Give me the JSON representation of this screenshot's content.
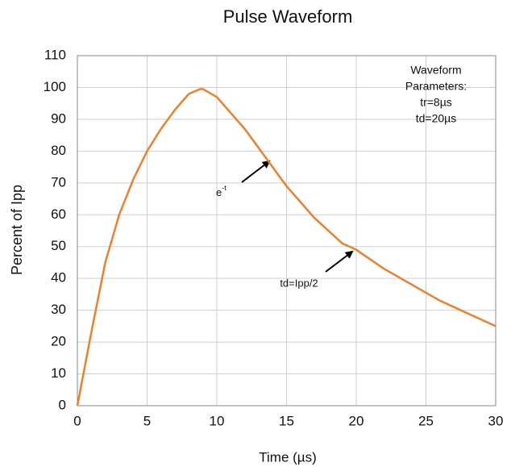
{
  "chart_data": {
    "type": "line",
    "title": "Pulse Waveform",
    "x_label": "Time (µs)",
    "y_label": "Percent of Ipp",
    "x": [
      0,
      1,
      2,
      3,
      4,
      5,
      6,
      7,
      8,
      8.8,
      9,
      10,
      11,
      12,
      13,
      14,
      15,
      16,
      17,
      18,
      19,
      20,
      22,
      24,
      26,
      28,
      30
    ],
    "series": [
      {
        "name": "Pulse",
        "color": "#f07f2a",
        "values": [
          0,
          23,
          45,
          60,
          71,
          80,
          87,
          93,
          98,
          99.5,
          99.5,
          97,
          92,
          87,
          81,
          75,
          69,
          64,
          59,
          55,
          51,
          49,
          43,
          38,
          33,
          29,
          25
        ]
      }
    ],
    "xlim": [
      0,
      30
    ],
    "xticks": [
      0,
      5,
      10,
      15,
      20,
      25,
      30
    ],
    "ylim": [
      0,
      110
    ],
    "yticks": [
      0,
      10,
      20,
      30,
      40,
      50,
      60,
      70,
      80,
      90,
      100,
      110
    ],
    "grid": true,
    "annotations": [
      {
        "text": "e",
        "sup": "-t"
      },
      {
        "text": "td=Ipp/2"
      }
    ],
    "parameters": [
      "Waveform",
      "Parameters:",
      "tr=8µs",
      "td=20µs"
    ]
  }
}
